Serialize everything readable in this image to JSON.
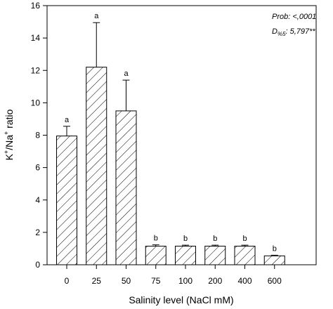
{
  "chart_data": {
    "type": "bar",
    "xlabel": "Salinity level (NaCl mM)",
    "ylabel_parts": {
      "k": "K",
      "k_sup": "+",
      "sep": "/Na",
      "na_sup": "+",
      "rest": " ratio"
    },
    "categories": [
      "0",
      "25",
      "50",
      "75",
      "100",
      "200",
      "400",
      "600"
    ],
    "values": [
      7.95,
      12.2,
      9.5,
      1.15,
      1.15,
      1.15,
      1.15,
      0.55
    ],
    "errors": [
      0.6,
      2.75,
      1.9,
      0.08,
      0.06,
      0.06,
      0.06,
      0.04
    ],
    "letters": [
      "a",
      "a",
      "a",
      "b",
      "b",
      "b",
      "b",
      "b"
    ],
    "ylim": [
      0,
      16
    ],
    "yticks": [
      0,
      2,
      4,
      6,
      8,
      10,
      12,
      14,
      16
    ],
    "bar_pattern": "diagonal-hatch",
    "annotation": {
      "prob_text": "Prob: <,0001",
      "d_main": "D",
      "d_sub": "%5",
      "d_value": ": 5,797**"
    }
  }
}
